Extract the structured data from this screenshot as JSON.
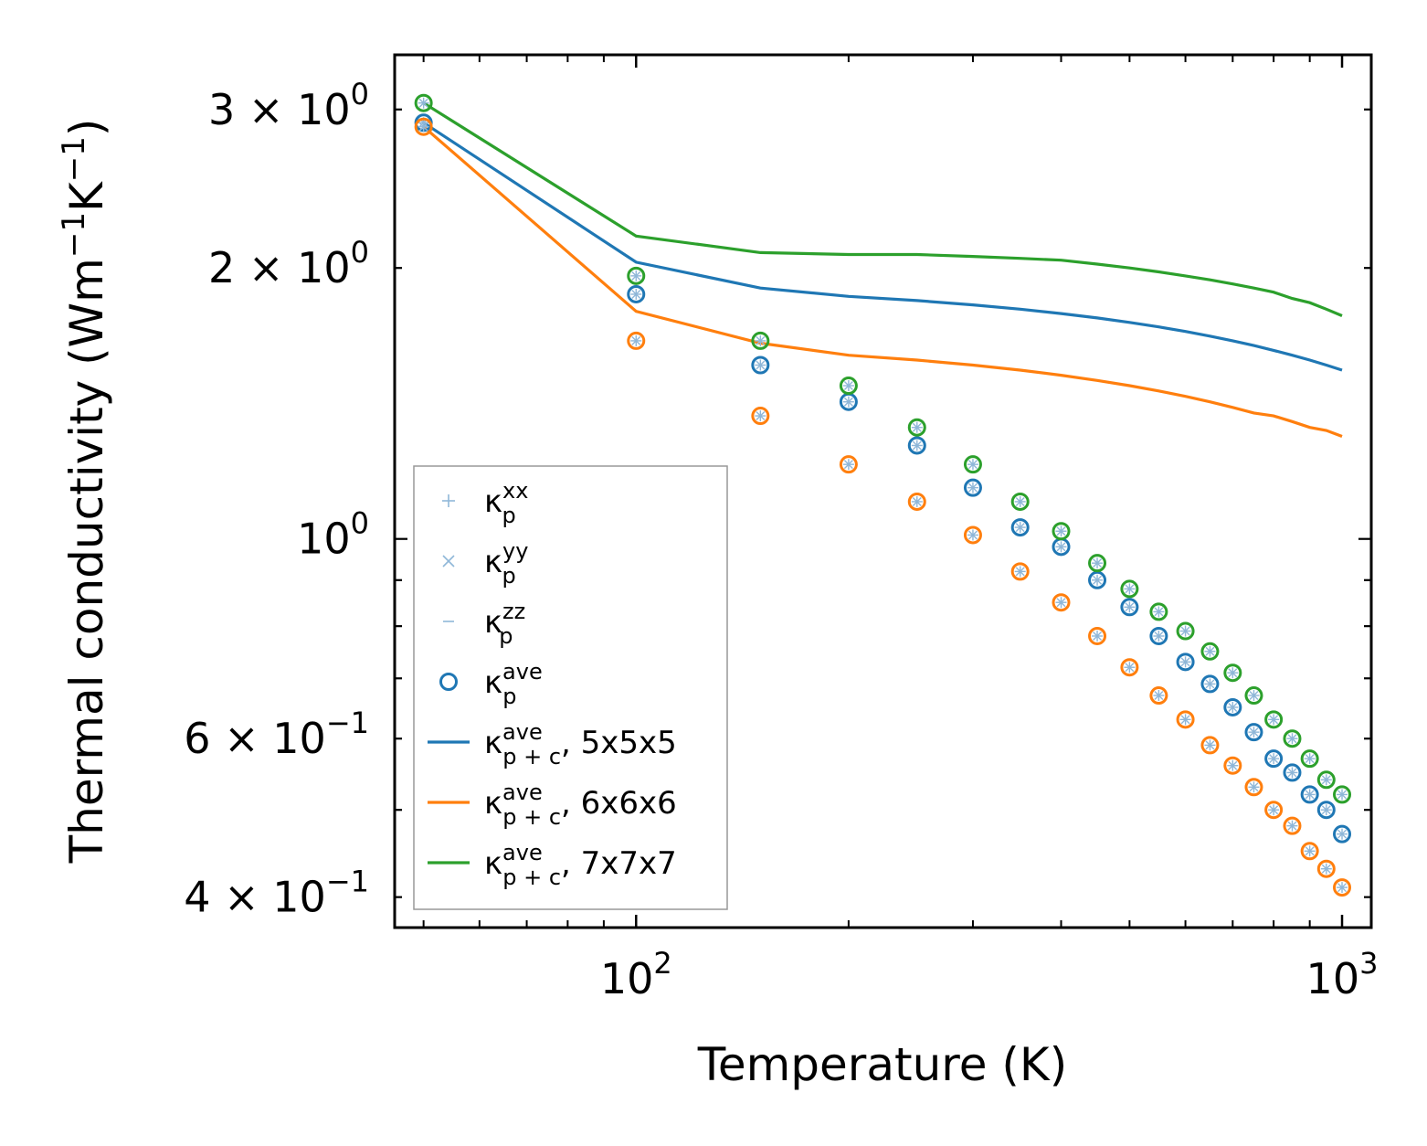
{
  "chart_data": {
    "type": "scatter+line",
    "xscale": "log",
    "yscale": "log",
    "xlim": [
      45.5,
      1100
    ],
    "ylim": [
      0.37,
      3.45
    ],
    "xlabel": "Temperature (K)",
    "ylabel": {
      "main": "Thermal conductivity (Wm",
      "sup1": "−1",
      "mid": "K",
      "sup2": "−1",
      "end": ")"
    },
    "x_ticks": [
      {
        "value": 100,
        "base": "10",
        "exp": "2"
      },
      {
        "value": 1000,
        "base": "10",
        "exp": "3"
      }
    ],
    "y_ticks": [
      {
        "value": 3,
        "mant": "3",
        "times": "×",
        "base": "10",
        "exp": "0"
      },
      {
        "value": 2,
        "mant": "2",
        "times": "×",
        "base": "10",
        "exp": "0"
      },
      {
        "value": 1,
        "mant": "",
        "times": "",
        "base": "10",
        "exp": "0"
      },
      {
        "value": 0.6,
        "mant": "6",
        "times": "×",
        "base": "10",
        "exp": "−1"
      },
      {
        "value": 0.4,
        "mant": "4",
        "times": "×",
        "base": "10",
        "exp": "−1"
      }
    ],
    "colors": {
      "c5": "#1f77b4",
      "c6": "#ff7f0e",
      "c7": "#2ca02c",
      "faint": "#8fb7d8"
    },
    "x": [
      50,
      100,
      150,
      200,
      250,
      300,
      350,
      400,
      450,
      500,
      550,
      600,
      650,
      700,
      750,
      800,
      850,
      900,
      950,
      1000
    ],
    "series": [
      {
        "name": "5x5x5",
        "color": "#1f77b4",
        "points_ave": [
          2.9,
          1.87,
          1.56,
          1.42,
          1.27,
          1.14,
          1.03,
          0.98,
          0.9,
          0.84,
          0.78,
          0.73,
          0.69,
          0.65,
          0.61,
          0.57,
          0.55,
          0.52,
          0.5,
          0.47
        ],
        "line_ave_pc": [
          2.9,
          2.03,
          1.9,
          1.86,
          1.84,
          1.82,
          1.8,
          1.78,
          1.76,
          1.74,
          1.72,
          1.7,
          1.68,
          1.66,
          1.64,
          1.62,
          1.6,
          1.58,
          1.56,
          1.54
        ]
      },
      {
        "name": "6x6x6",
        "color": "#ff7f0e",
        "points_ave": [
          2.87,
          1.66,
          1.37,
          1.21,
          1.1,
          1.01,
          0.92,
          0.85,
          0.78,
          0.72,
          0.67,
          0.63,
          0.59,
          0.56,
          0.53,
          0.5,
          0.48,
          0.45,
          0.43,
          0.41
        ],
        "line_ave_pc": [
          2.87,
          1.79,
          1.65,
          1.6,
          1.58,
          1.56,
          1.54,
          1.52,
          1.5,
          1.48,
          1.46,
          1.44,
          1.42,
          1.4,
          1.38,
          1.37,
          1.35,
          1.33,
          1.32,
          1.3
        ]
      },
      {
        "name": "7x7x7",
        "color": "#2ca02c",
        "points_ave": [
          3.05,
          1.96,
          1.66,
          1.48,
          1.33,
          1.21,
          1.1,
          1.02,
          0.94,
          0.88,
          0.83,
          0.79,
          0.75,
          0.71,
          0.67,
          0.63,
          0.6,
          0.57,
          0.54,
          0.52
        ],
        "line_ave_pc": [
          3.05,
          2.17,
          2.08,
          2.07,
          2.07,
          2.06,
          2.05,
          2.04,
          2.02,
          2.0,
          1.98,
          1.96,
          1.94,
          1.92,
          1.9,
          1.88,
          1.85,
          1.83,
          1.8,
          1.77
        ]
      }
    ],
    "legend": {
      "position": "lower-left",
      "entries": [
        {
          "kind": "plus",
          "base": "κ",
          "sup": "xx",
          "sub": "p",
          "suffix": ""
        },
        {
          "kind": "cross",
          "base": "κ",
          "sup": "yy",
          "sub": "p",
          "suffix": ""
        },
        {
          "kind": "dash",
          "base": "κ",
          "sup": "zz",
          "sub": "p",
          "suffix": ""
        },
        {
          "kind": "circle",
          "base": "κ",
          "sup": "ave",
          "sub": "p",
          "suffix": ""
        },
        {
          "kind": "line5",
          "base": "κ",
          "sup": "ave",
          "sub": "p + c",
          "suffix": ", 5x5x5"
        },
        {
          "kind": "line6",
          "base": "κ",
          "sup": "ave",
          "sub": "p + c",
          "suffix": ", 6x6x6"
        },
        {
          "kind": "line7",
          "base": "κ",
          "sup": "ave",
          "sub": "p + c",
          "suffix": ", 7x7x7"
        }
      ]
    }
  }
}
